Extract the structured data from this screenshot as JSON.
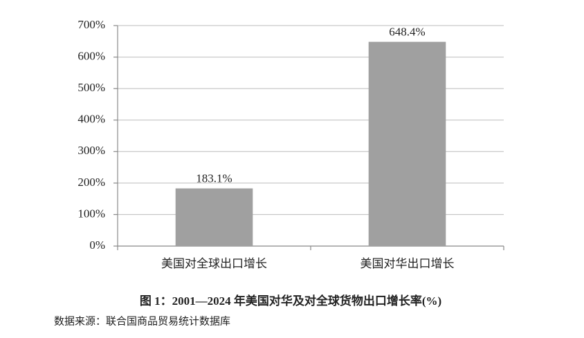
{
  "chart_data": {
    "type": "bar",
    "title": "图 1：2001—2024 年美国对华及对全球货物出口增长率(%)",
    "source": "数据来源：联合国商品贸易统计数据库",
    "categories": [
      "美国对全球出口增长",
      "美国对华出口增长"
    ],
    "values": [
      183.1,
      648.4
    ],
    "value_labels": [
      "183.1%",
      "648.4%"
    ],
    "color": "#a0a0a0",
    "ylim": [
      0,
      700
    ],
    "yticks": [
      {
        "value": 0,
        "label": "0%"
      },
      {
        "value": 100,
        "label": "100%"
      },
      {
        "value": 200,
        "label": "200%"
      },
      {
        "value": 300,
        "label": "300%"
      },
      {
        "value": 400,
        "label": "400%"
      },
      {
        "value": 500,
        "label": "500%"
      },
      {
        "value": 600,
        "label": "600%"
      },
      {
        "value": 700,
        "label": "700%"
      }
    ],
    "grid": true
  }
}
